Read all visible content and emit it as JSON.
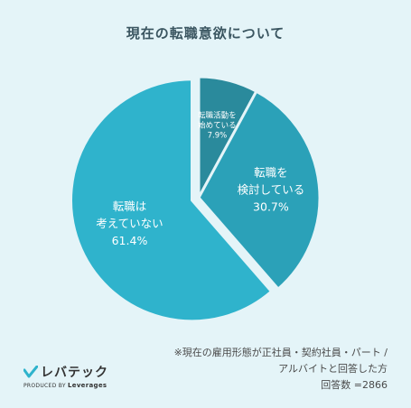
{
  "title": "現在の転職意欲について",
  "chart_data": {
    "type": "pie",
    "slices": [
      {
        "label": [
          "転職活動を",
          "始めている"
        ],
        "value": 7.9,
        "value_label": "7.9%",
        "color": "#2a8a9c",
        "exploded": false
      },
      {
        "label": [
          "転職を",
          "検討している"
        ],
        "value": 30.7,
        "value_label": "30.7%",
        "color": "#2ba1b8",
        "exploded": false
      },
      {
        "label": [
          "転職は",
          "考えていない"
        ],
        "value": 61.4,
        "value_label": "61.4%",
        "color": "#2fb3cc",
        "exploded": true
      }
    ]
  },
  "footnote": {
    "line1": "※現在の雇用形態が正社員・契約社員・パート /",
    "line2": "アルバイトと回答した方",
    "line3": "回答数 =2866"
  },
  "brand": {
    "name": "レバテック",
    "sub_prefix": "PRODUCED BY",
    "sub_name": "Leverages",
    "mark_color": "#2fb3cc"
  }
}
